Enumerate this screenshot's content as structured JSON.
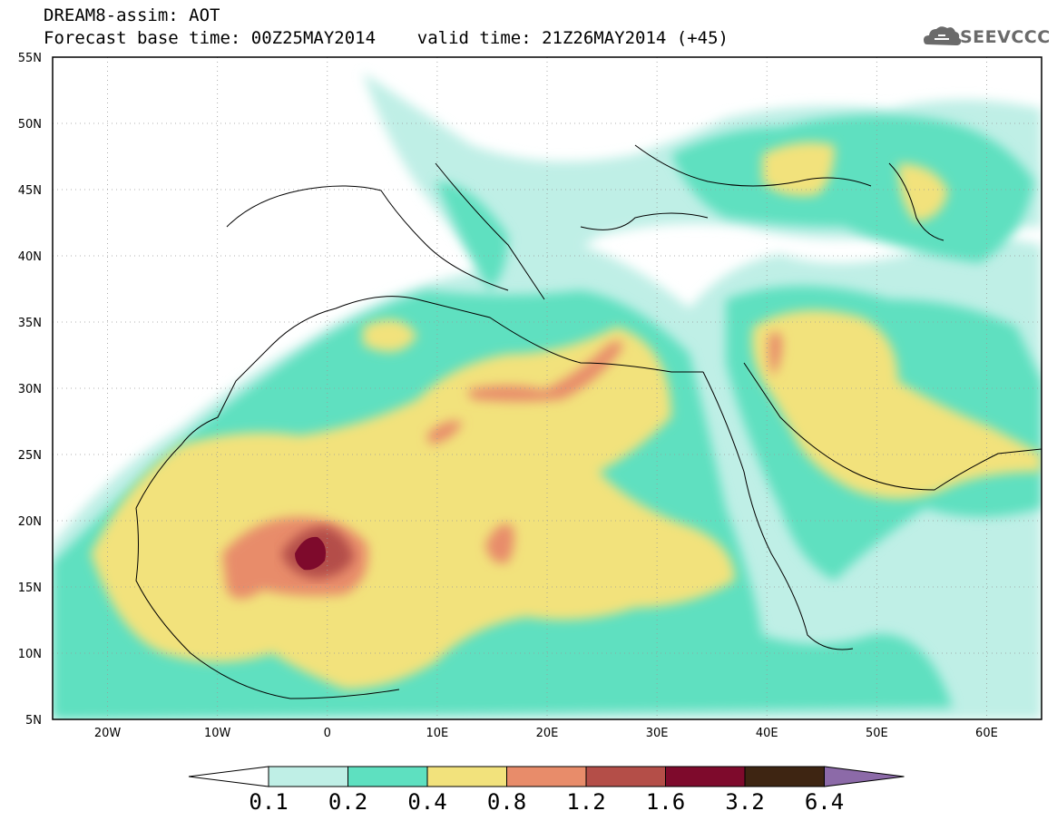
{
  "title": "DREAM8-assim: AOT",
  "subtitle": "Forecast base time: 00Z25MAY2014    valid time: 21Z26MAY2014 (+45)",
  "logo": {
    "text": "SEEVCCC",
    "icon": "cloud-icon"
  },
  "map": {
    "lon_range": [
      -25,
      65
    ],
    "lat_range": [
      5,
      55
    ],
    "lon_ticks": [
      "20W",
      "10W",
      "0",
      "10E",
      "20E",
      "30E",
      "40E",
      "50E",
      "60E"
    ],
    "lat_ticks": [
      "55N",
      "50N",
      "45N",
      "40N",
      "35N",
      "30N",
      "25N",
      "20N",
      "15N",
      "10N",
      "5N"
    ],
    "grid": "dotted"
  },
  "colorbar": {
    "colors": [
      "#bfefe6",
      "#5ee0c0",
      "#f2e27c",
      "#e88c6a",
      "#b44e48",
      "#7e0a2c",
      "#3e2512",
      "#8c6aa8"
    ],
    "lower_extend_color": "#ffffff",
    "labels": [
      "0.1",
      "0.2",
      "0.4",
      "0.8",
      "1.2",
      "1.6",
      "3.2",
      "6.4"
    ]
  }
}
